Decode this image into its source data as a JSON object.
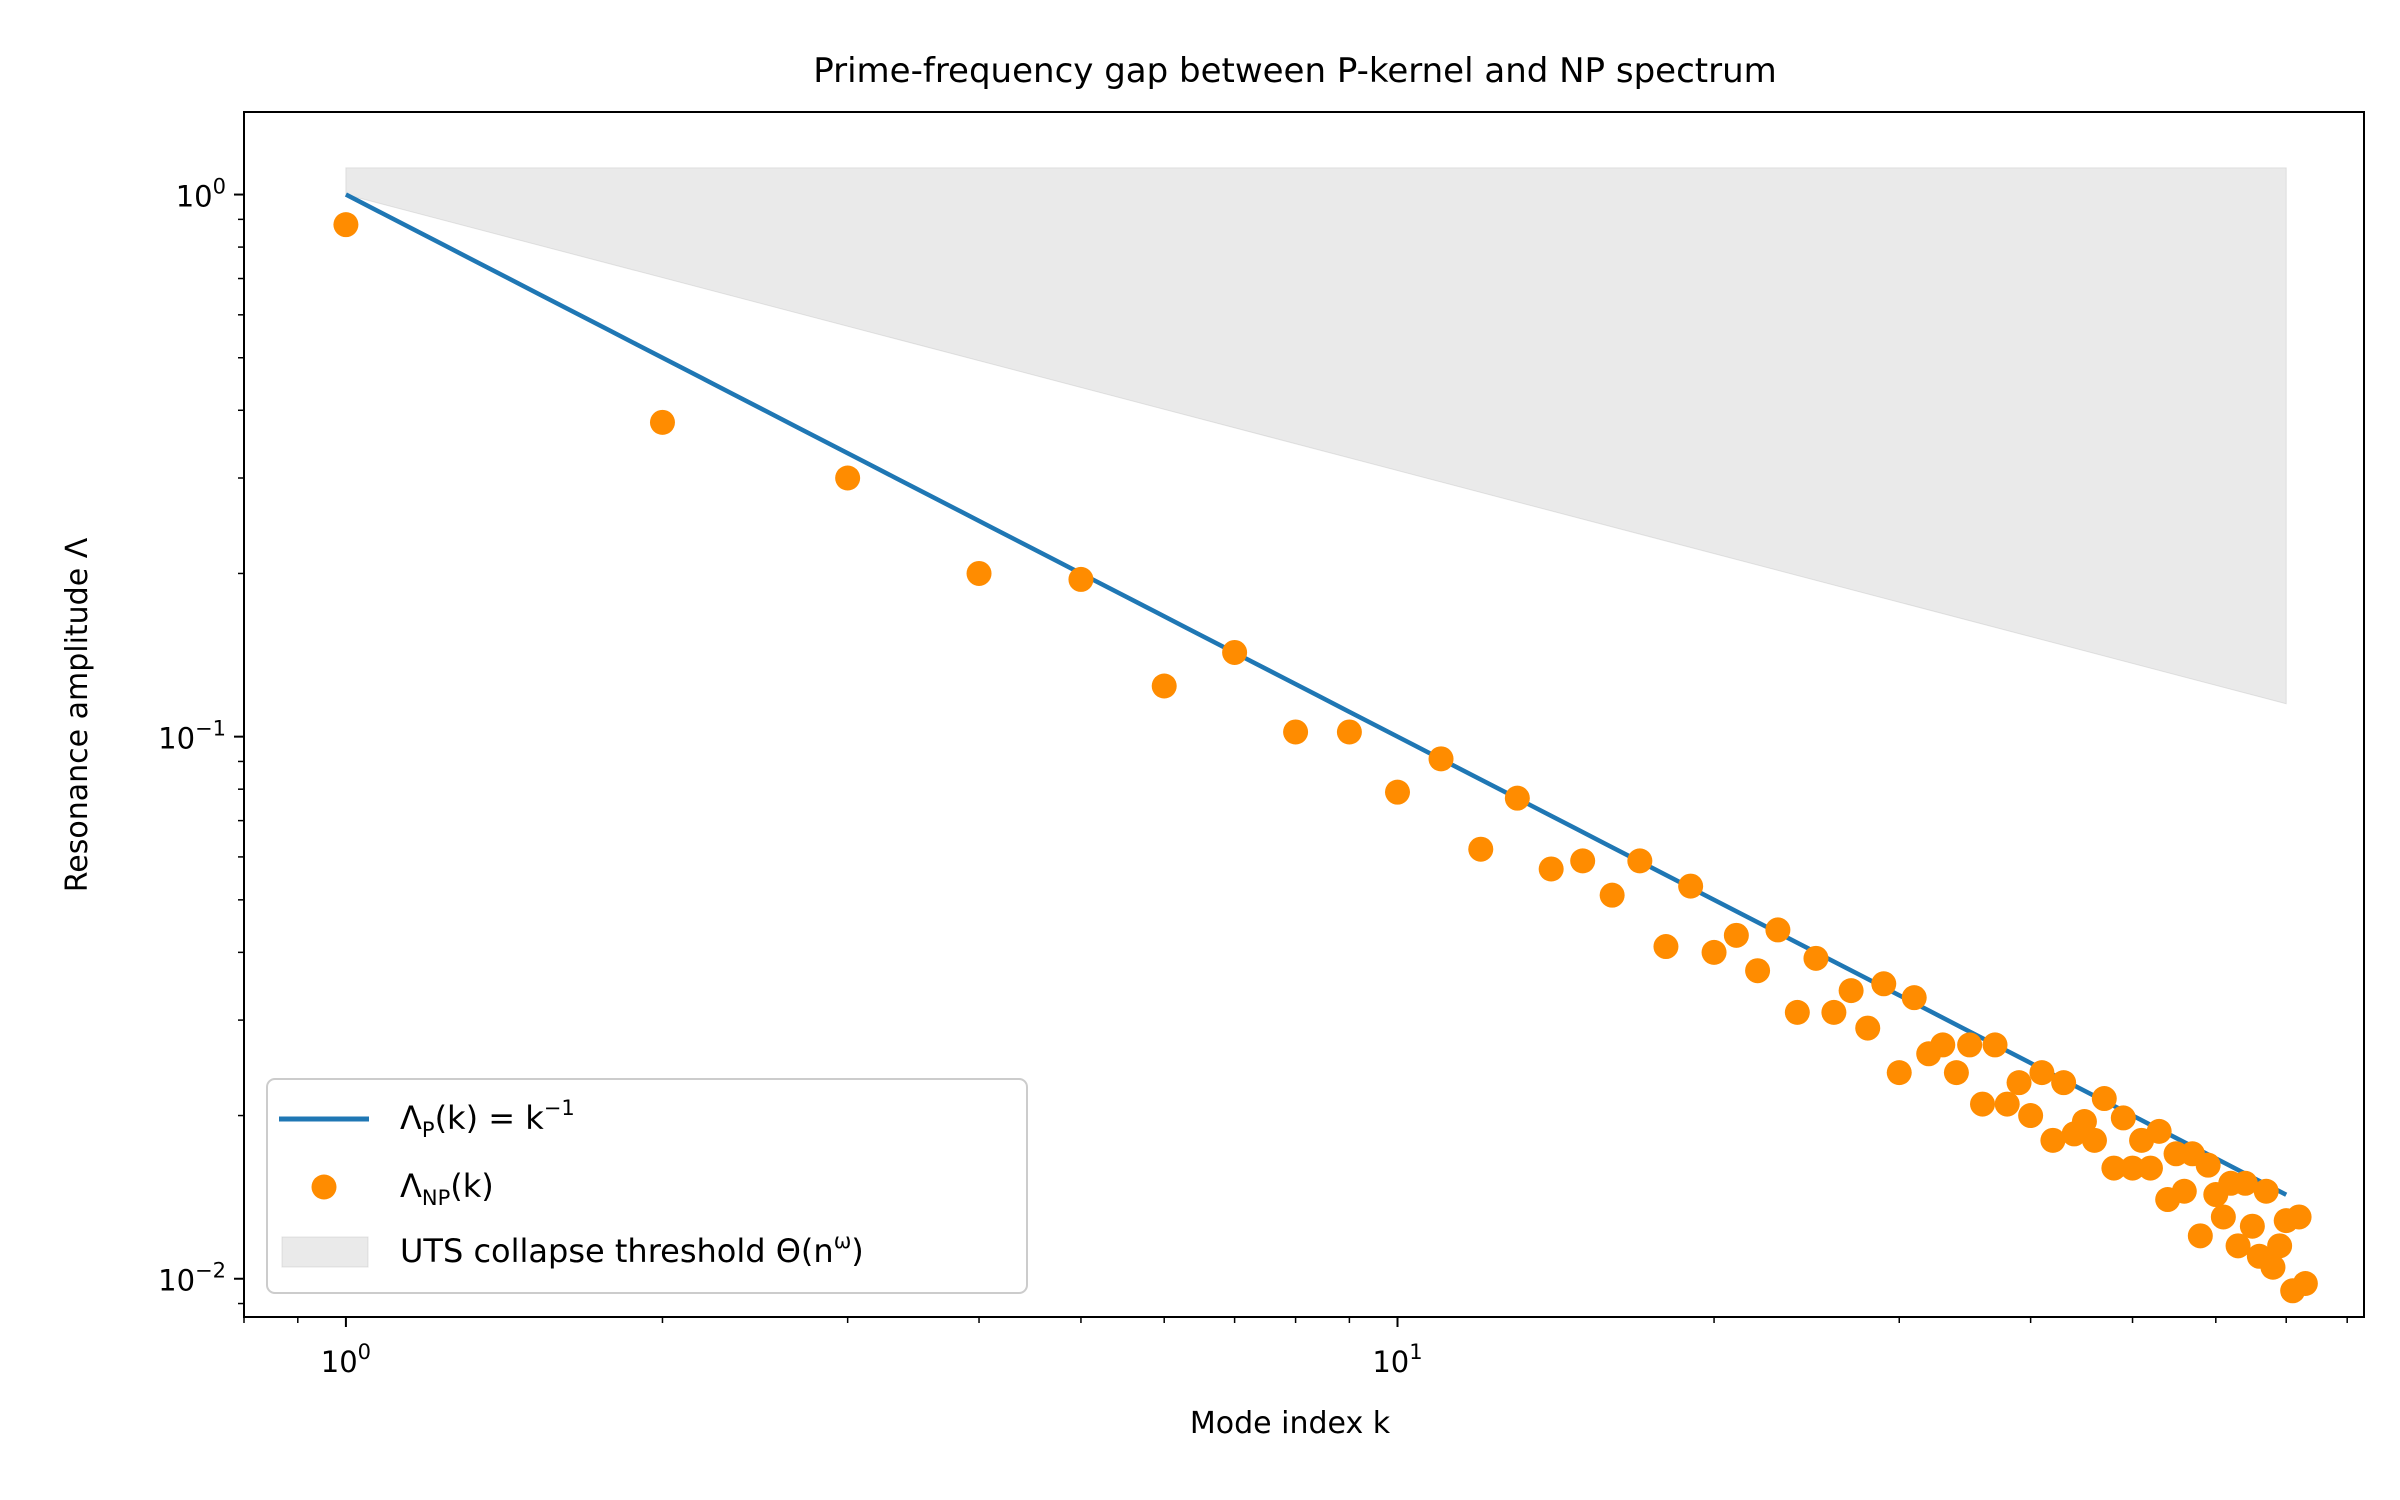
{
  "chart_data": {
    "type": "scatter",
    "title": "Prime-frequency gap between P-kernel and NP spectrum",
    "xlabel": "Mode index  k",
    "ylabel": "Resonance amplitude  Λ",
    "xscale": "log",
    "yscale": "log",
    "xlim": [
      0.8,
      83
    ],
    "ylim": [
      0.0085,
      1.42
    ],
    "x_ticks": [
      {
        "value": 1,
        "base": "10",
        "exp": "0"
      },
      {
        "value": 10,
        "base": "10",
        "exp": "1"
      }
    ],
    "y_ticks": [
      {
        "value": 1,
        "base": "10",
        "exp": "0"
      },
      {
        "value": 0.1,
        "base": "10",
        "exp": "−1"
      },
      {
        "value": 0.01,
        "base": "10",
        "exp": "−2"
      }
    ],
    "grid": false,
    "legend_position": "lower-left",
    "series": [
      {
        "name": "ΛP(k) = k−1",
        "kind": "line",
        "color": "#1f77b4",
        "formula": "1/k",
        "x_range": [
          1,
          70
        ]
      },
      {
        "name": "ΛNP(k)",
        "kind": "scatter",
        "color": "#ff8c00",
        "points": [
          [
            1,
            0.88
          ],
          [
            2,
            0.38
          ],
          [
            3,
            0.3
          ],
          [
            4,
            0.2
          ],
          [
            5,
            0.195
          ],
          [
            6,
            0.124
          ],
          [
            7,
            0.143
          ],
          [
            8,
            0.102
          ],
          [
            9,
            0.102
          ],
          [
            10,
            0.079
          ],
          [
            11,
            0.091
          ],
          [
            12,
            0.062
          ],
          [
            13,
            0.077
          ],
          [
            14,
            0.057
          ],
          [
            15,
            0.059
          ],
          [
            16,
            0.051
          ],
          [
            17,
            0.059
          ],
          [
            18,
            0.041
          ],
          [
            19,
            0.053
          ],
          [
            20,
            0.04
          ],
          [
            21,
            0.043
          ],
          [
            22,
            0.037
          ],
          [
            23,
            0.044
          ],
          [
            24,
            0.031
          ],
          [
            25,
            0.039
          ],
          [
            26,
            0.031
          ],
          [
            27,
            0.034
          ],
          [
            28,
            0.029
          ],
          [
            29,
            0.035
          ],
          [
            30,
            0.024
          ],
          [
            31,
            0.033
          ],
          [
            32,
            0.026
          ],
          [
            33,
            0.027
          ],
          [
            34,
            0.024
          ],
          [
            35,
            0.027
          ],
          [
            36,
            0.021
          ],
          [
            37,
            0.027
          ],
          [
            38,
            0.021
          ],
          [
            39,
            0.023
          ],
          [
            40,
            0.02
          ],
          [
            41,
            0.024
          ],
          [
            42,
            0.018
          ],
          [
            43,
            0.023
          ],
          [
            44,
            0.0185
          ],
          [
            45,
            0.0195
          ],
          [
            46,
            0.018
          ],
          [
            47,
            0.0215
          ],
          [
            48,
            0.016
          ],
          [
            49,
            0.0198
          ],
          [
            50,
            0.016
          ],
          [
            51,
            0.018
          ],
          [
            52,
            0.016
          ],
          [
            53,
            0.0187
          ],
          [
            54,
            0.014
          ],
          [
            55,
            0.017
          ],
          [
            56,
            0.0145
          ],
          [
            57,
            0.017
          ],
          [
            58,
            0.012
          ],
          [
            59,
            0.0162
          ],
          [
            60,
            0.0143
          ],
          [
            61,
            0.013
          ],
          [
            62,
            0.015
          ],
          [
            63,
            0.0115
          ],
          [
            64,
            0.015
          ],
          [
            65,
            0.0125
          ],
          [
            66,
            0.011
          ],
          [
            67,
            0.0145
          ],
          [
            68,
            0.0105
          ],
          [
            69,
            0.0115
          ],
          [
            70,
            0.0128
          ],
          [
            71,
            0.0095
          ],
          [
            72,
            0.013
          ],
          [
            73,
            0.0098
          ]
        ]
      },
      {
        "name": "UTS collapse threshold Θ(nω)",
        "kind": "fill_between",
        "color": "#d9d9d9",
        "x_range": [
          1,
          70
        ],
        "upper": [
          [
            1,
            1.12
          ],
          [
            70,
            1.12
          ]
        ],
        "lower": [
          [
            1,
            1.0
          ],
          [
            70,
            0.115
          ]
        ]
      }
    ],
    "legend": {
      "line_label": {
        "pre": "Λ",
        "sub": "P",
        "mid": "(k) = k",
        "sup": "−1"
      },
      "scatter_label": {
        "pre": "Λ",
        "sub": "NP",
        "mid": "(k)"
      },
      "fill_label": {
        "pre": "UTS collapse threshold Θ(n",
        "sup": "ω",
        "post": ")"
      }
    }
  }
}
